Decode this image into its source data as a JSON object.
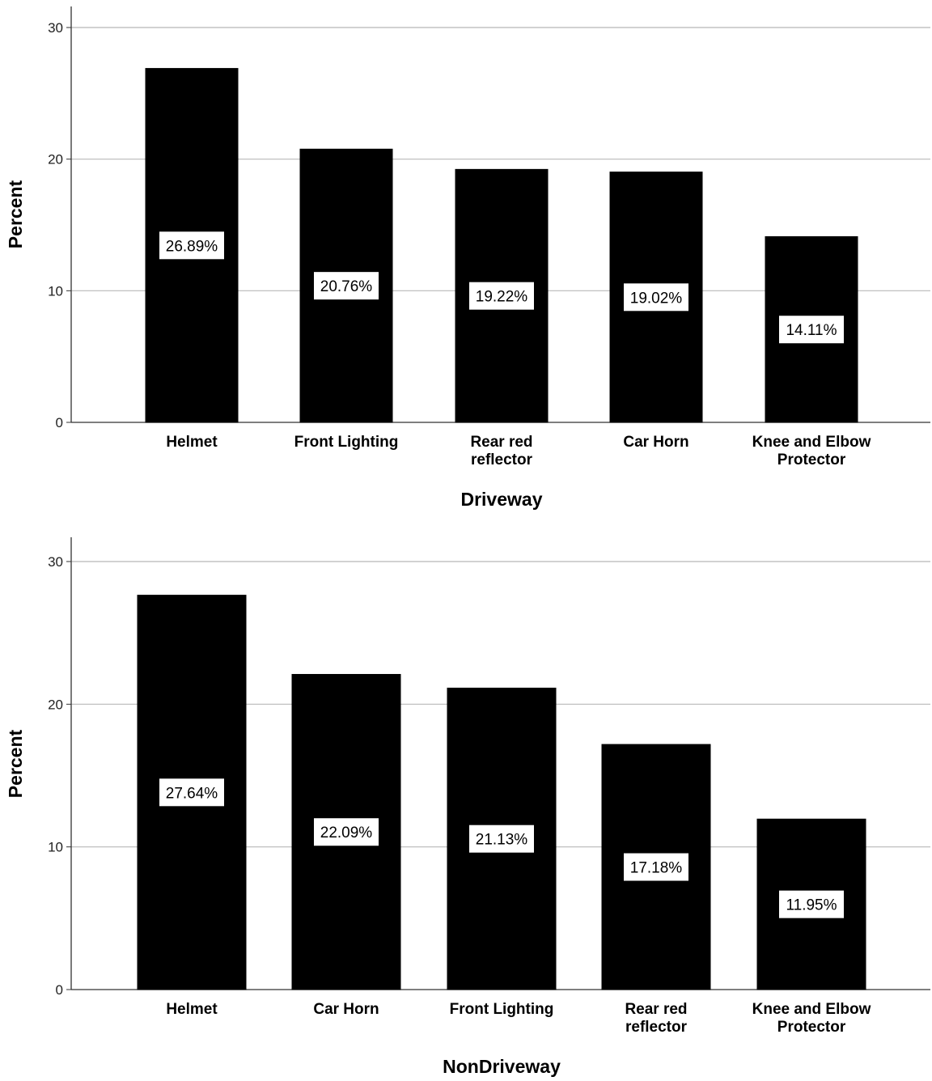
{
  "chart_data": [
    {
      "type": "bar",
      "xlabel": "Driveway",
      "ylabel": "Percent",
      "ylim": [
        0,
        30
      ],
      "yticks": [
        0,
        10,
        20,
        30
      ],
      "grid": true,
      "bar_color": "#000000",
      "categories": [
        [
          "Helmet"
        ],
        [
          "Front Lighting"
        ],
        [
          "Rear red",
          "reflector"
        ],
        [
          "Car Horn"
        ],
        [
          "Knee and Elbow",
          "Protector"
        ]
      ],
      "values": [
        26.89,
        20.76,
        19.22,
        19.02,
        14.11
      ],
      "data_labels": [
        "26.89%",
        "20.76%",
        "19.22%",
        "19.02%",
        "14.11%"
      ]
    },
    {
      "type": "bar",
      "xlabel": "NonDriveway",
      "ylabel": "Percent",
      "ylim": [
        0,
        30
      ],
      "yticks": [
        0,
        10,
        20,
        30
      ],
      "grid": true,
      "bar_color": "#000000",
      "categories": [
        [
          "Helmet"
        ],
        [
          "Car Horn"
        ],
        [
          "Front Lighting"
        ],
        [
          "Rear red",
          "reflector"
        ],
        [
          "Knee and Elbow",
          "Protector"
        ]
      ],
      "values": [
        27.64,
        22.09,
        21.13,
        17.18,
        11.95
      ],
      "data_labels": [
        "27.64%",
        "22.09%",
        "21.13%",
        "17.18%",
        "11.95%"
      ]
    }
  ]
}
